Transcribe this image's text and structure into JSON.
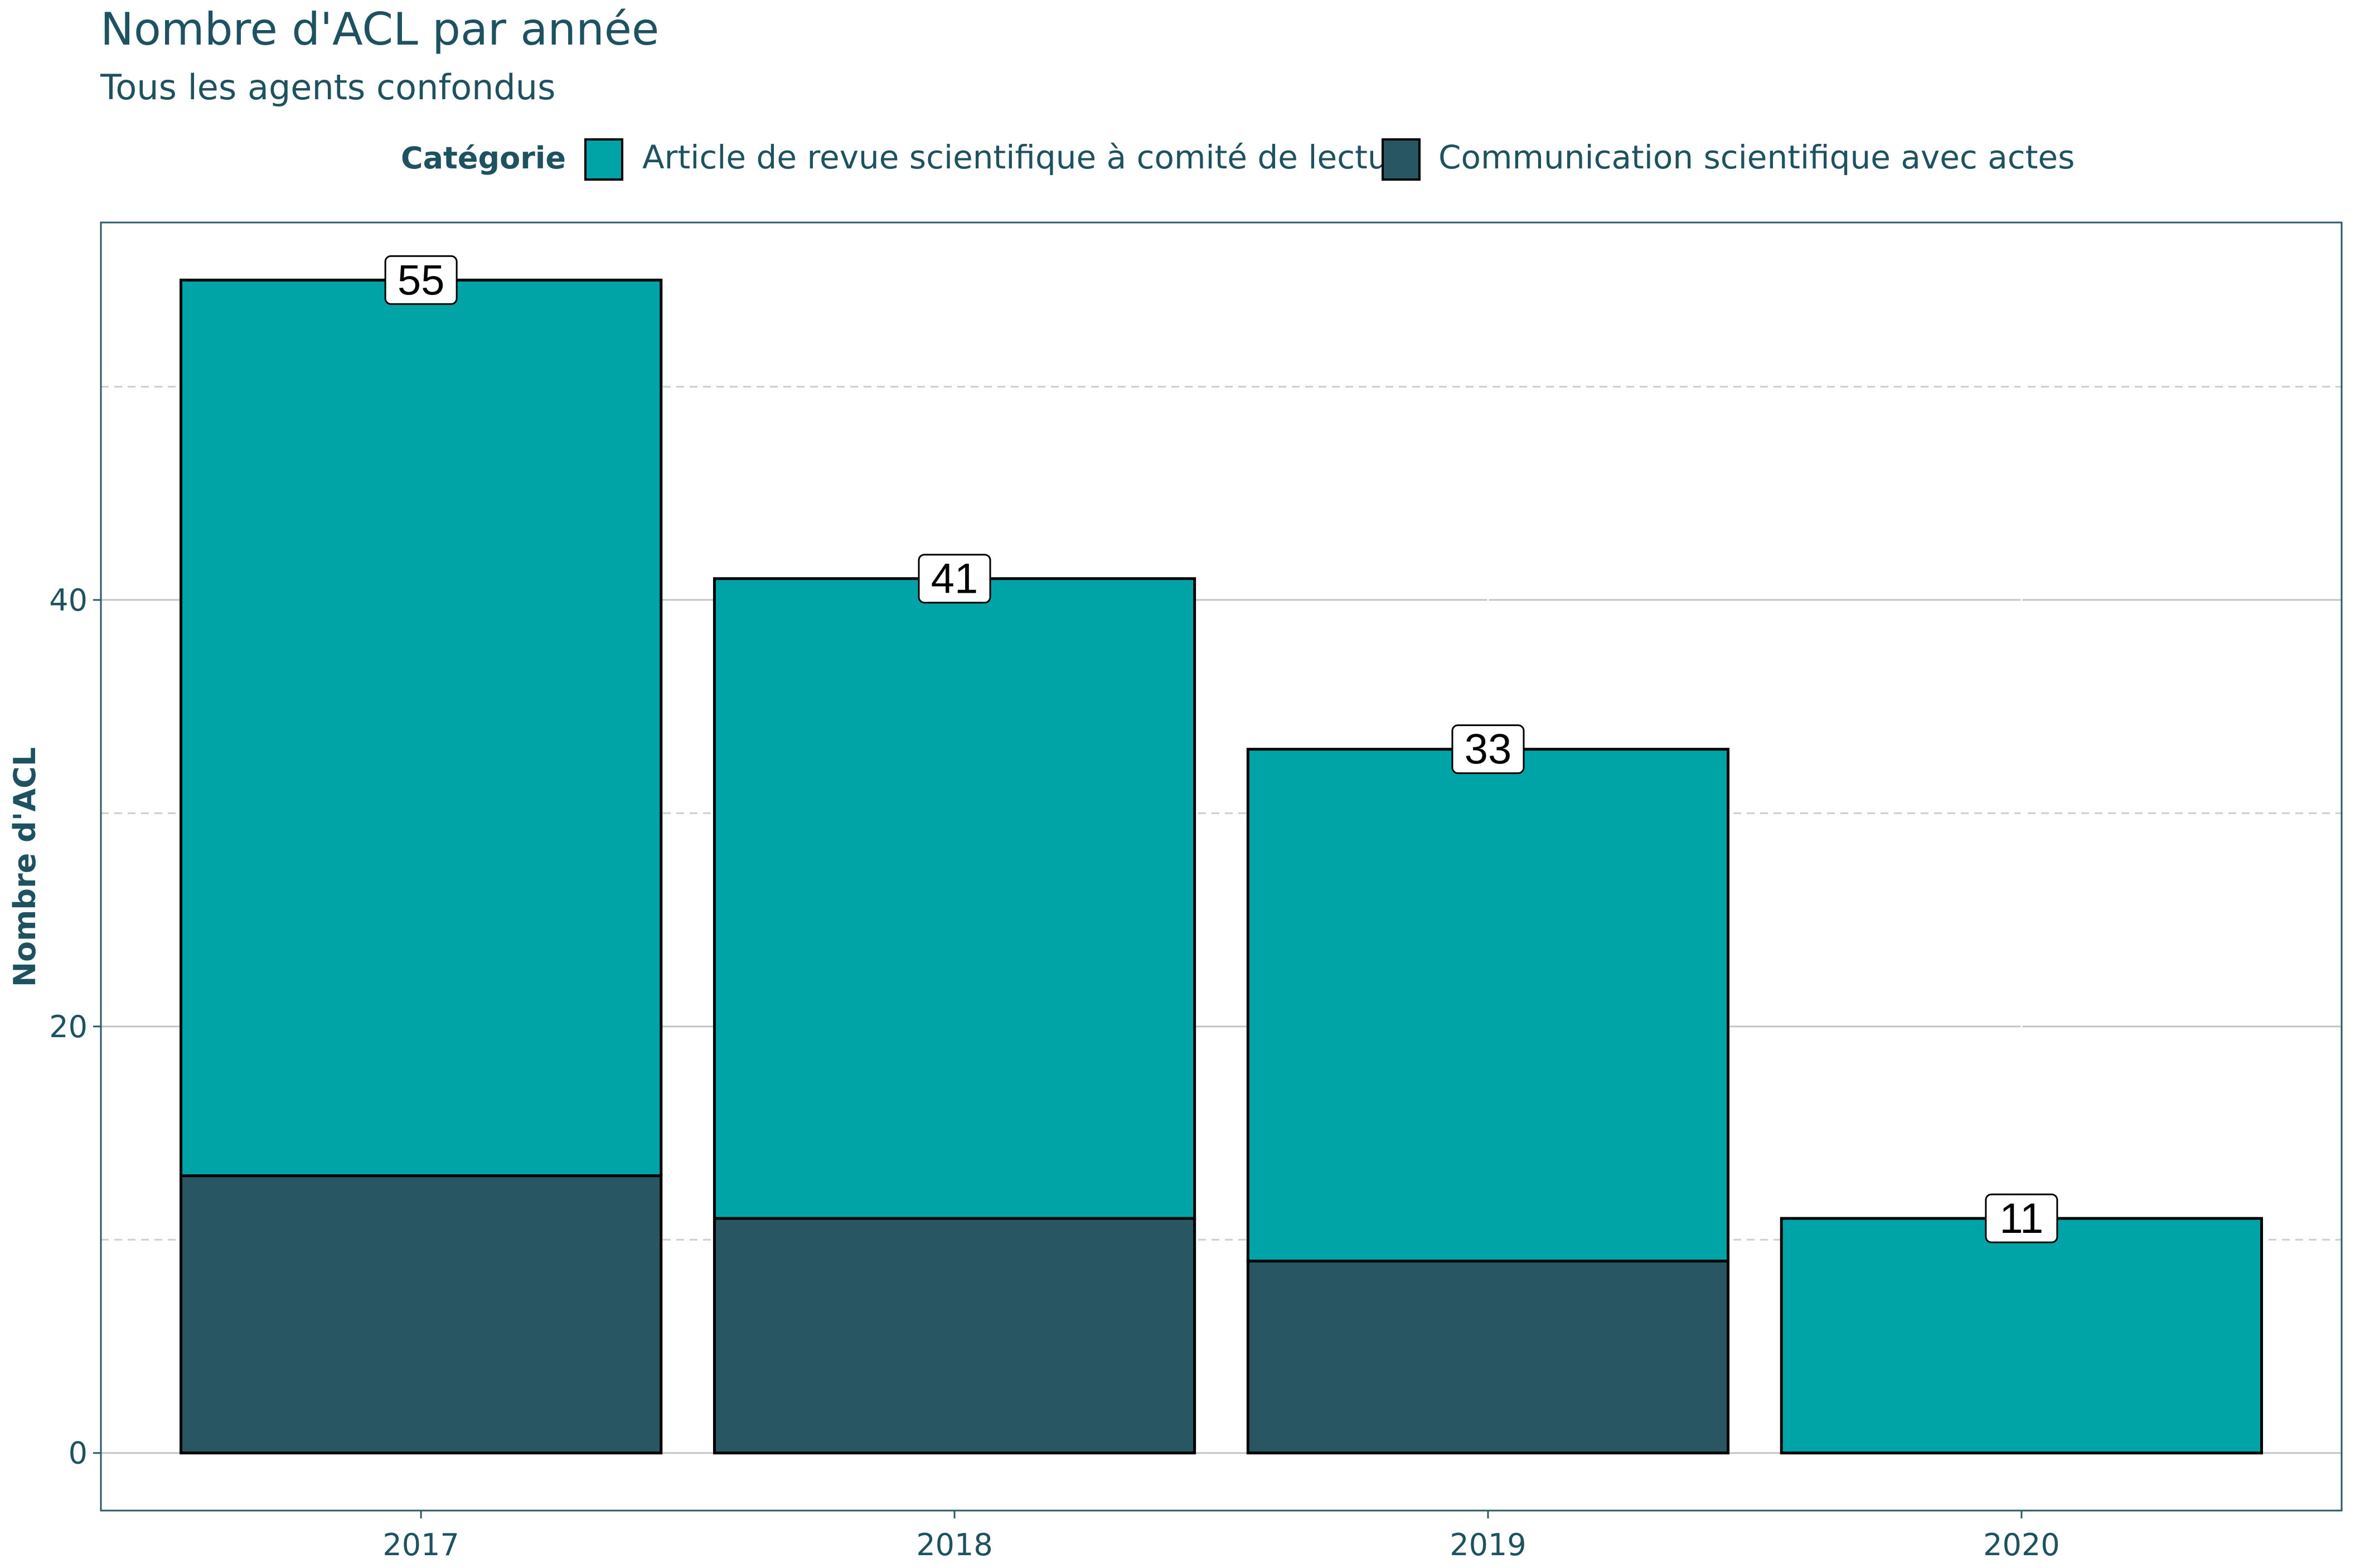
{
  "chart_data": {
    "type": "bar",
    "stacked": true,
    "title": "Nombre d'ACL par année",
    "subtitle": "Tous les agents confondus",
    "xlabel": "",
    "ylabel": "Nombre d'ACL",
    "categories": [
      "2017",
      "2018",
      "2019",
      "2020"
    ],
    "series": [
      {
        "name": "Communication scientifique avec actes",
        "color": "#285663",
        "values": [
          13,
          11,
          9,
          0
        ]
      },
      {
        "name": "Article de revue scientifique à comité de lecture",
        "color": "#00a4a7",
        "values": [
          42,
          30,
          24,
          11
        ]
      }
    ],
    "totals": [
      55,
      41,
      33,
      11
    ],
    "ylim": [
      -2.7,
      57.7
    ],
    "yticks": [
      0,
      20,
      40
    ],
    "minor_gridlines": [
      10,
      30,
      50
    ],
    "grid": true,
    "legend": {
      "title": "Catégorie",
      "position": "top",
      "order": [
        "Article de revue scientifique à comité de lecture",
        "Communication scientifique avec actes"
      ]
    }
  }
}
